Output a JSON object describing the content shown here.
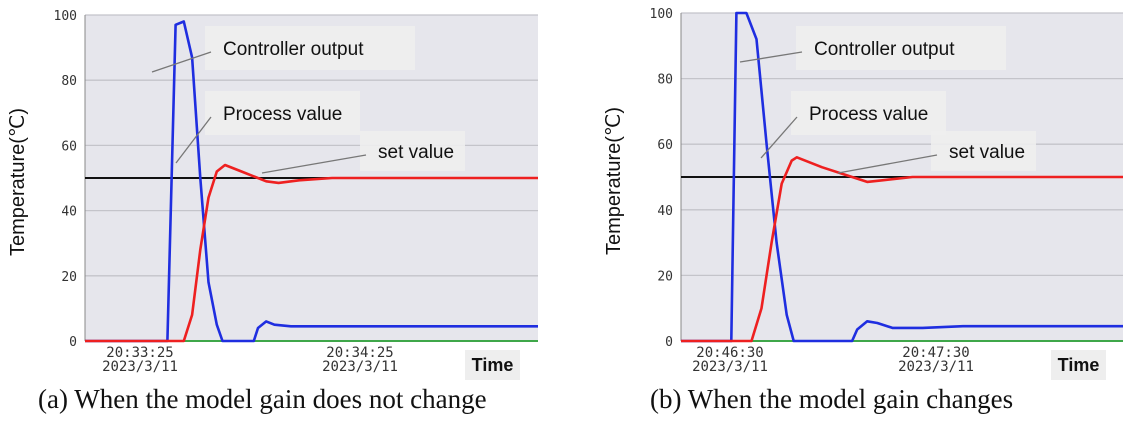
{
  "colors": {
    "plot_bg": "#e6e6ec",
    "grid": "#c4c4ca",
    "output": "#1f2ee0",
    "process": "#ee2020",
    "setpoint": "#111111",
    "baseline": "#3fa74a",
    "label_box": "#eeeeee"
  },
  "chart_data": [
    {
      "type": "line",
      "ylabel": "Temperature(℃)",
      "xlabel": "Time",
      "ylim": [
        0,
        100
      ],
      "yticks": [
        "0",
        "20",
        "40",
        "60",
        "80",
        "100"
      ],
      "xticks": [
        {
          "time": "20:33:25",
          "date": "2023/3/11"
        },
        {
          "time": "20:34:25",
          "date": "2023/3/11"
        }
      ],
      "annotations": [
        "Controller output",
        "Process value",
        "set value"
      ],
      "caption": "(a) When the model gain does not change",
      "series": [
        {
          "name": "Controller output",
          "points": [
            [
              0,
              0
            ],
            [
              10,
              0
            ],
            [
              11,
              97
            ],
            [
              12,
              98
            ],
            [
              13,
              87
            ],
            [
              14,
              50
            ],
            [
              15,
              18
            ],
            [
              16,
              5
            ],
            [
              16.7,
              0
            ],
            [
              20.5,
              0
            ],
            [
              21,
              4
            ],
            [
              22,
              6
            ],
            [
              23,
              5
            ],
            [
              25,
              4.5
            ],
            [
              30,
              4.5
            ],
            [
              55,
              4.5
            ]
          ]
        },
        {
          "name": "Process value",
          "points": [
            [
              0,
              0
            ],
            [
              12,
              0
            ],
            [
              13,
              8
            ],
            [
              14,
              28
            ],
            [
              15,
              44
            ],
            [
              16,
              52
            ],
            [
              17,
              54
            ],
            [
              19,
              52
            ],
            [
              22,
              49
            ],
            [
              23.5,
              48.5
            ],
            [
              26,
              49.3
            ],
            [
              30,
              50
            ],
            [
              55,
              50
            ]
          ]
        },
        {
          "name": "set value",
          "points": [
            [
              0,
              50
            ],
            [
              55,
              50
            ]
          ]
        }
      ]
    },
    {
      "type": "line",
      "ylabel": "Temperature(℃)",
      "xlabel": "Time",
      "ylim": [
        0,
        100
      ],
      "yticks": [
        "0",
        "20",
        "40",
        "60",
        "80",
        "100"
      ],
      "xticks": [
        {
          "time": "20:46:30",
          "date": "2023/3/11"
        },
        {
          "time": "20:47:30",
          "date": "2023/3/11"
        }
      ],
      "annotations": [
        "Controller output",
        "Process value",
        "set value"
      ],
      "caption": "(b) When the model gain changes",
      "series": [
        {
          "name": "Controller output",
          "points": [
            [
              0,
              0
            ],
            [
              5,
              0
            ],
            [
              5.5,
              100
            ],
            [
              6.5,
              100
            ],
            [
              7.5,
              92
            ],
            [
              8.5,
              60
            ],
            [
              9.5,
              30
            ],
            [
              10.5,
              8
            ],
            [
              11.2,
              0
            ],
            [
              17,
              0
            ],
            [
              17.5,
              3.5
            ],
            [
              18.5,
              6
            ],
            [
              19.5,
              5.5
            ],
            [
              21,
              4
            ],
            [
              24,
              4
            ],
            [
              28,
              4.5
            ],
            [
              45,
              4.5
            ]
          ]
        },
        {
          "name": "Process value",
          "points": [
            [
              0,
              0
            ],
            [
              7,
              0
            ],
            [
              8,
              10
            ],
            [
              9,
              30
            ],
            [
              10,
              48
            ],
            [
              11,
              55
            ],
            [
              11.5,
              56
            ],
            [
              14,
              53
            ],
            [
              17,
              50
            ],
            [
              18.5,
              48.5
            ],
            [
              20,
              49
            ],
            [
              23,
              50
            ],
            [
              45,
              50
            ]
          ]
        },
        {
          "name": "set value",
          "points": [
            [
              0,
              50
            ],
            [
              45,
              50
            ]
          ]
        }
      ]
    }
  ]
}
